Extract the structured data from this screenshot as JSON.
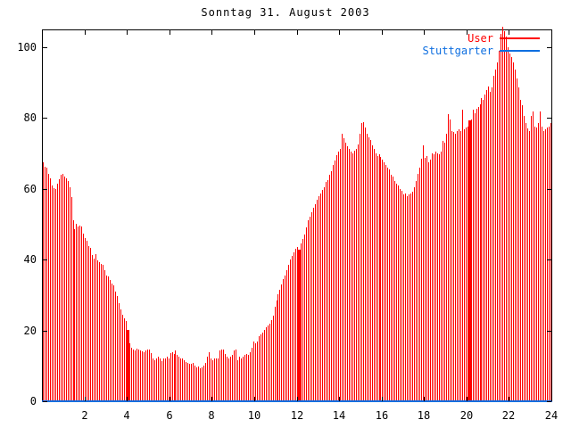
{
  "title": "Sonntag 31. August 2003",
  "legend": {
    "position": "top-right",
    "items": [
      {
        "label": "User",
        "color": "#ff0000"
      },
      {
        "label": "Stuttgarter",
        "color": "#0d6ee0"
      }
    ]
  },
  "axes": {
    "x": {
      "range": [
        0,
        24
      ],
      "tick_labels": [
        "2",
        "4",
        "6",
        "8",
        "10",
        "12",
        "14",
        "16",
        "18",
        "20",
        "22",
        "24"
      ],
      "ticks": [
        2,
        4,
        6,
        8,
        10,
        12,
        14,
        16,
        18,
        20,
        22,
        24
      ]
    },
    "y": {
      "range_visible": [
        0,
        105
      ],
      "tick_labels": [
        "0",
        "20",
        "40",
        "60",
        "80",
        "100"
      ],
      "ticks": [
        0,
        20,
        40,
        60,
        80,
        100
      ]
    }
  },
  "colors": {
    "background": "#ffffff",
    "axis": "#000000",
    "user_series": "#ff0000",
    "stuttgarter_series": "#0d6ee0",
    "title_text": "#000000"
  },
  "chart_data": {
    "type": "bar",
    "style": "impulses",
    "title": "Sonntag 31. August 2003",
    "x_unit": "hour_of_day",
    "step_minutes": 5,
    "xlim": [
      0,
      24
    ],
    "ylim": [
      0,
      105
    ],
    "grid": false,
    "legend_position": "top-right",
    "series": [
      {
        "name": "User",
        "color": "#ff0000",
        "values": [
          67.5,
          66.3,
          65.8,
          64.2,
          62.9,
          61.0,
          60.2,
          60.0,
          61.4,
          62.6,
          63.9,
          64.2,
          63.4,
          62.8,
          62.2,
          60.5,
          57.5,
          51.2,
          48.5,
          50.0,
          49.2,
          49.6,
          49.4,
          47.4,
          46.1,
          45.3,
          43.8,
          43.2,
          41.2,
          40.2,
          41.5,
          39.8,
          39.2,
          38.8,
          38.6,
          36.9,
          35.6,
          35.2,
          34.2,
          33.2,
          32.7,
          31.0,
          29.8,
          27.7,
          26.0,
          24.3,
          23.4,
          22.6,
          20.1,
          16.4,
          15.1,
          14.6,
          14.3,
          14.9,
          14.7,
          14.3,
          14.1,
          13.8,
          14.4,
          14.7,
          14.7,
          13.6,
          12.2,
          11.7,
          12.2,
          12.6,
          12.2,
          11.3,
          12.2,
          12.2,
          12.6,
          12.2,
          13.6,
          13.8,
          13.4,
          14.3,
          13.0,
          12.6,
          12.2,
          12.2,
          11.7,
          11.2,
          10.9,
          10.5,
          10.7,
          10.9,
          10.1,
          9.6,
          9.9,
          9.2,
          9.6,
          10.1,
          10.9,
          12.7,
          13.8,
          12.2,
          11.7,
          12.2,
          12.2,
          12.2,
          14.3,
          14.7,
          14.7,
          13.4,
          12.6,
          12.2,
          12.6,
          13.0,
          14.3,
          14.7,
          11.7,
          12.6,
          12.2,
          12.6,
          13.0,
          13.4,
          13.2,
          13.8,
          15.1,
          16.8,
          16.4,
          16.8,
          18.4,
          18.8,
          19.3,
          20.1,
          20.8,
          21.4,
          21.8,
          23.0,
          24.2,
          26.8,
          28.5,
          30.2,
          31.5,
          33.0,
          34.5,
          35.4,
          37.0,
          38.6,
          40.0,
          41.1,
          42.0,
          43.0,
          43.6,
          42.8,
          44.5,
          45.8,
          47.0,
          49.0,
          51.1,
          52.2,
          53.3,
          54.5,
          55.6,
          56.8,
          57.8,
          58.7,
          59.6,
          60.5,
          61.8,
          62.4,
          64.0,
          65.0,
          66.8,
          67.9,
          69.5,
          70.5,
          71.3,
          75.5,
          74.2,
          73.0,
          72.0,
          71.3,
          70.4,
          70.0,
          70.6,
          71.3,
          72.5,
          75.5,
          78.4,
          78.8,
          77.2,
          75.5,
          74.5,
          73.8,
          72.1,
          71.3,
          70.0,
          69.2,
          69.6,
          69.0,
          68.3,
          67.5,
          66.7,
          66.0,
          65.4,
          64.0,
          63.3,
          62.1,
          61.5,
          60.8,
          60.0,
          59.5,
          58.3,
          58.7,
          57.9,
          58.3,
          58.7,
          59.1,
          60.4,
          62.1,
          64.2,
          66.0,
          68.5,
          72.3,
          68.8,
          69.2,
          67.5,
          68.3,
          70.0,
          69.6,
          70.4,
          70.0,
          69.6,
          70.4,
          73.4,
          73.0,
          75.5,
          81.0,
          79.5,
          76.3,
          75.9,
          75.5,
          76.3,
          76.7,
          76.3,
          82.2,
          76.7,
          77.2,
          77.6,
          79.2,
          79.5,
          82.2,
          81.3,
          82.6,
          83.0,
          83.9,
          85.5,
          85.1,
          86.5,
          87.8,
          88.9,
          87.2,
          88.5,
          91.9,
          93.6,
          95.7,
          99.0,
          103.6,
          105.7,
          104.5,
          103.0,
          100.0,
          98.0,
          97.0,
          95.5,
          93.5,
          91.0,
          88.5,
          85.1,
          83.5,
          80.5,
          78.4,
          77.0,
          76.3,
          80.5,
          81.8,
          77.5,
          77.2,
          78.4,
          81.8,
          77.6,
          76.3,
          76.7,
          77.2,
          77.5,
          78.4,
          77.0
        ]
      },
      {
        "name": "Stuttgarter",
        "color": "#0d6ee0",
        "constant_value": 0
      }
    ],
    "wide_bar_indices": [
      48,
      145,
      241
    ]
  }
}
